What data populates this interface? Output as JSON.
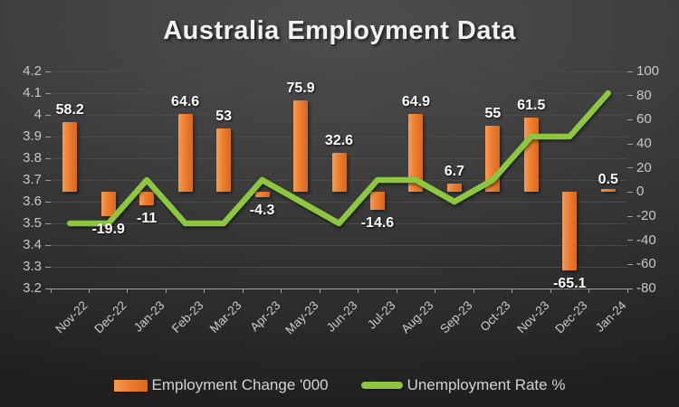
{
  "title": "Australia Employment Data",
  "legend": {
    "bar_label": "Employment Change '000",
    "line_label": "Unemployment Rate %"
  },
  "colors": {
    "bar_main": "#ED7D31",
    "bar_light": "#F49E54",
    "bar_dark": "#D8691C",
    "line": "#8DC63F",
    "title_text": "#F2F2F2",
    "axis_text": "#C8C8C8",
    "x_axis_text": "#CCCCCC",
    "data_label_text": "#FFFFFF",
    "legend_text": "#D2D2D2",
    "gridline": "#4A4A4A",
    "axis_line": "#9E9E9E"
  },
  "chart_data": {
    "type": "bar",
    "subtype": "combo-bar-line",
    "title": "Australia Employment Data",
    "categories": [
      "Nov-22",
      "Dec-22",
      "Jan-23",
      "Feb-23",
      "Mar-23",
      "Apr-23",
      "May-23",
      "Jun-23",
      "Jul-23",
      "Aug-23",
      "Sep-23",
      "Oct-23",
      "Nov-23",
      "Dec-23",
      "Jan-24"
    ],
    "series": [
      {
        "name": "Employment Change '000",
        "type": "bar",
        "axis": "right",
        "values": [
          58.2,
          -19.9,
          -11,
          64.6,
          53,
          -4.3,
          75.9,
          32.6,
          -14.6,
          64.9,
          6.7,
          55,
          61.5,
          -65.1,
          0.5
        ],
        "data_labels": [
          "58.2",
          "-19.9",
          "-11",
          "64.6",
          "53",
          "-4.3",
          "75.9",
          "32.6",
          "-14.6",
          "64.9",
          "6.7",
          "55",
          "61.5",
          "-65.1",
          "0.5"
        ]
      },
      {
        "name": "Unemployment Rate %",
        "type": "line",
        "axis": "left",
        "values": [
          3.5,
          3.5,
          3.7,
          3.5,
          3.5,
          3.7,
          3.6,
          3.5,
          3.7,
          3.7,
          3.6,
          3.7,
          3.9,
          3.9,
          4.1
        ]
      }
    ],
    "left_axis": {
      "min": 3.2,
      "max": 4.2,
      "step": 0.1,
      "tick_labels": [
        "4.2",
        "4.1",
        "4",
        "3.9",
        "3.8",
        "3.7",
        "3.6",
        "3.5",
        "3.4",
        "3.3",
        "3.2"
      ]
    },
    "right_axis": {
      "min": -80,
      "max": 100,
      "step": 20,
      "tick_labels": [
        "100",
        "80",
        "60",
        "40",
        "20",
        "0",
        "-20",
        "-40",
        "-60",
        "-80"
      ]
    },
    "grid": true,
    "legend_position": "bottom",
    "xlabel": "",
    "ylabel": ""
  }
}
